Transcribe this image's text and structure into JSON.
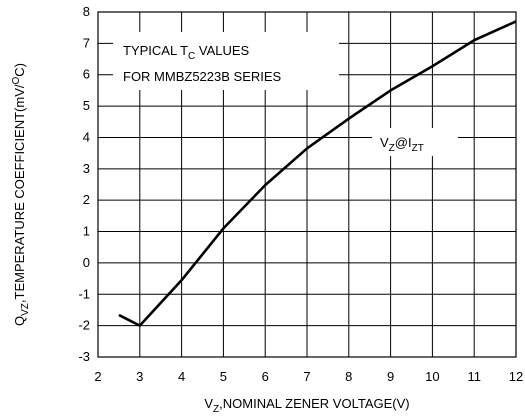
{
  "chart_data": {
    "type": "line",
    "x": [
      2.5,
      3,
      4,
      5,
      6,
      7,
      8,
      9,
      10,
      11,
      12
    ],
    "values": [
      -1.66,
      -2.0,
      -0.55,
      1.1,
      2.48,
      3.65,
      4.6,
      5.5,
      6.27,
      7.1,
      7.7
    ],
    "color": "#000000",
    "xlim": [
      2,
      12
    ],
    "xticks": [
      2,
      3,
      4,
      5,
      6,
      7,
      8,
      9,
      10,
      11,
      12
    ],
    "ylim": [
      -3,
      8
    ],
    "yticks": [
      -3,
      -2,
      -1,
      0,
      1,
      2,
      3,
      4,
      5,
      6,
      7,
      8
    ],
    "grid": true,
    "x_label": [
      {
        "text": "V"
      },
      {
        "text": "Z",
        "sub": true
      },
      {
        "text": ",NOMINAL ZENER VOLTAGE(V)"
      }
    ],
    "y_label": [
      {
        "text": "Q"
      },
      {
        "text": "VZ",
        "sub": true
      },
      {
        "text": ",TEMPERATURE COEFFICIENT(mV/"
      },
      {
        "text": "O",
        "sup": true
      },
      {
        "text": "C)"
      }
    ],
    "annotation_lines": [
      [
        {
          "text": "TYPICAL T"
        },
        {
          "text": "C",
          "sub": true
        },
        {
          "text": " VALUES"
        }
      ],
      [
        {
          "text": "FOR MMBZ5223B SERIES"
        }
      ]
    ],
    "curve_label": [
      {
        "text": "V"
      },
      {
        "text": "Z",
        "sub": true
      },
      {
        "text": "@I"
      },
      {
        "text": "ZT",
        "sub": true
      }
    ]
  }
}
